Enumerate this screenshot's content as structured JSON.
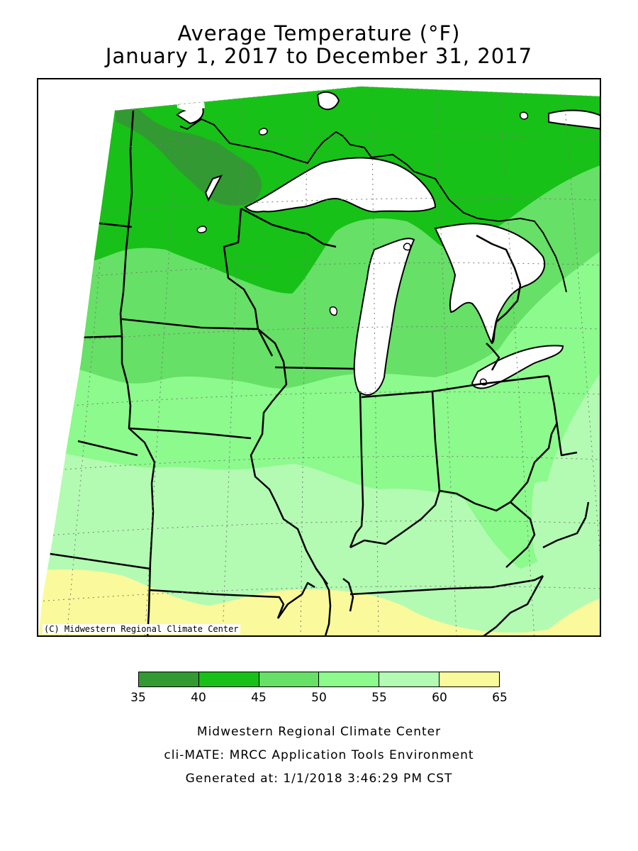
{
  "title": {
    "line1": "Average Temperature (°F)",
    "line2": "January 1, 2017 to December 31, 2017"
  },
  "map": {
    "copyright": "(C) Midwestern Regional Climate Center",
    "region": "Upper Midwest and Ohio Valley",
    "lake_color": "#ffffff"
  },
  "legend": {
    "ticks": [
      "35",
      "40",
      "45",
      "50",
      "55",
      "60",
      "65"
    ],
    "bins": [
      {
        "range": "35-40",
        "color": "#339933"
      },
      {
        "range": "40-45",
        "color": "#17c117"
      },
      {
        "range": "45-50",
        "color": "#66e066"
      },
      {
        "range": "50-55",
        "color": "#8cfa8c"
      },
      {
        "range": "55-60",
        "color": "#b3fbb3"
      },
      {
        "range": "60-65",
        "color": "#fafa9c"
      }
    ]
  },
  "footer": {
    "line1": "Midwestern Regional Climate Center",
    "line2": "cli-MATE: MRCC Application Tools Environment",
    "line3": "Generated at: 1/1/2018 3:46:29 PM CST"
  }
}
